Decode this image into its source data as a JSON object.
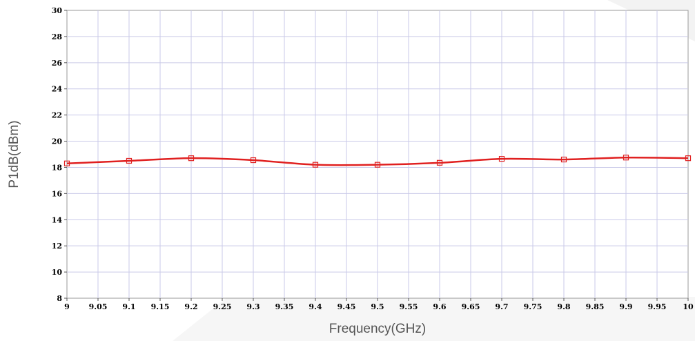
{
  "chart_data": {
    "type": "line",
    "xlabel": "Frequency(GHz)",
    "ylabel": "P1dB(dBm)",
    "xlim": [
      9,
      10
    ],
    "ylim": [
      8,
      30
    ],
    "grid": true,
    "x_ticks": [
      "9",
      "9.05",
      "9.1",
      "9.15",
      "9.2",
      "9.25",
      "9.3",
      "9.35",
      "9.4",
      "9.45",
      "9.5",
      "9.55",
      "9.6",
      "9.65",
      "9.7",
      "9.75",
      "9.8",
      "9.85",
      "9.9",
      "9.95",
      "10"
    ],
    "y_ticks": [
      "8",
      "10",
      "12",
      "14",
      "16",
      "18",
      "20",
      "22",
      "24",
      "26",
      "28",
      "30"
    ],
    "series": [
      {
        "color": "#e02020",
        "marker": "square",
        "x": [
          9.0,
          9.1,
          9.2,
          9.3,
          9.4,
          9.5,
          9.6,
          9.7,
          9.8,
          9.9,
          10.0
        ],
        "y": [
          18.3,
          18.5,
          18.7,
          18.55,
          18.2,
          18.2,
          18.35,
          18.65,
          18.6,
          18.75,
          18.7
        ]
      }
    ]
  }
}
